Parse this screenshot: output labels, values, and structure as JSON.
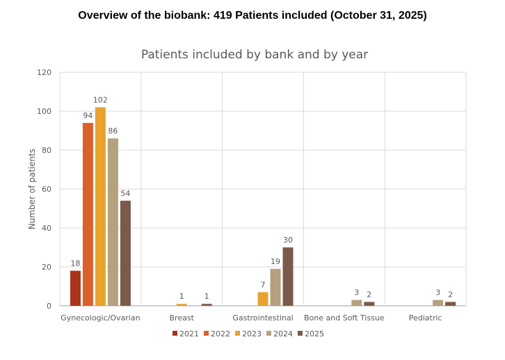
{
  "header": {
    "title": "Overview of the biobank: 419 Patients included (October 31, 2025)"
  },
  "chart_data": {
    "type": "bar",
    "title": "Patients included by bank and by year",
    "xlabel": "",
    "ylabel": "Number of patients",
    "ylim": [
      0,
      120
    ],
    "yticks": [
      0,
      20,
      40,
      60,
      80,
      100,
      120
    ],
    "grid": true,
    "legend_position": "bottom",
    "categories": [
      "Gynecologic/Ovarian",
      "Breast",
      "Gastrointestinal",
      "Bone and Soft Tissue",
      "Pediatric"
    ],
    "series": [
      {
        "name": "2021",
        "color": "#A7341B",
        "values": [
          18,
          null,
          null,
          null,
          null
        ]
      },
      {
        "name": "2022",
        "color": "#D9612A",
        "values": [
          94,
          null,
          null,
          null,
          null
        ]
      },
      {
        "name": "2023",
        "color": "#E8A22E",
        "values": [
          102,
          1,
          7,
          null,
          null
        ]
      },
      {
        "name": "2024",
        "color": "#B5A07F",
        "values": [
          86,
          null,
          19,
          3,
          3
        ]
      },
      {
        "name": "2025",
        "color": "#7B5A4B",
        "values": [
          54,
          1,
          30,
          2,
          2
        ]
      }
    ]
  }
}
